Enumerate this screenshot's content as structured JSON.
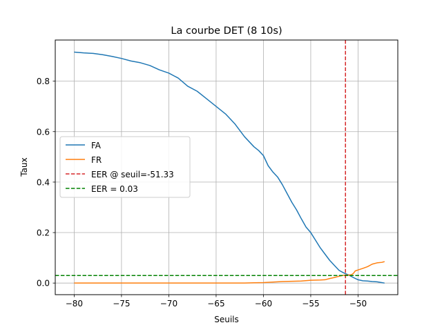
{
  "chart_data": {
    "type": "line",
    "title": "La courbe DET (8 10s)",
    "xlabel": "Seuils",
    "ylabel": "Taux",
    "xlim": [
      -82.0,
      -45.8
    ],
    "ylim": [
      -0.046,
      0.963
    ],
    "xticks": [
      -80,
      -75,
      -70,
      -65,
      -60,
      -55,
      -50
    ],
    "yticks": [
      0.0,
      0.2,
      0.4,
      0.6,
      0.8
    ],
    "xtick_labels": [
      "−80",
      "−75",
      "−70",
      "−65",
      "−60",
      "−55",
      "−50"
    ],
    "ytick_labels": [
      "0.0",
      "0.2",
      "0.4",
      "0.6",
      "0.8"
    ],
    "grid": true,
    "legend_position": "center-left",
    "series": [
      {
        "name": "FA",
        "color": "#1f77b4",
        "style": "solid",
        "x": [
          -80,
          -79,
          -78,
          -77,
          -76,
          -75,
          -74,
          -73,
          -72,
          -71,
          -70,
          -69,
          -68,
          -67,
          -66,
          -65,
          -64,
          -63,
          -62,
          -61,
          -60.5,
          -60,
          -59.5,
          -59,
          -58.5,
          -58,
          -57.5,
          -57,
          -56.5,
          -56,
          -55.5,
          -55,
          -54.5,
          -54,
          -53.5,
          -53,
          -52.5,
          -52,
          -51.5,
          -51,
          -50.5,
          -50,
          -49.5,
          -49,
          -48.5,
          -48,
          -47.5,
          -47.2
        ],
        "values": [
          0.915,
          0.912,
          0.91,
          0.905,
          0.898,
          0.89,
          0.88,
          0.873,
          0.862,
          0.845,
          0.832,
          0.812,
          0.78,
          0.76,
          0.73,
          0.7,
          0.67,
          0.63,
          0.58,
          0.54,
          0.525,
          0.505,
          0.465,
          0.44,
          0.42,
          0.39,
          0.355,
          0.32,
          0.29,
          0.255,
          0.222,
          0.2,
          0.17,
          0.14,
          0.115,
          0.09,
          0.07,
          0.05,
          0.04,
          0.032,
          0.022,
          0.013,
          0.009,
          0.008,
          0.006,
          0.005,
          0.002,
          0.0
        ]
      },
      {
        "name": "FR",
        "color": "#ff7f0e",
        "style": "solid",
        "x": [
          -80,
          -75,
          -70,
          -65,
          -62,
          -61,
          -60,
          -59,
          -58,
          -57,
          -56,
          -55,
          -54,
          -53.5,
          -53,
          -52.5,
          -52,
          -51.5,
          -51,
          -50.7,
          -50.5,
          -50.3,
          -50,
          -49.5,
          -49,
          -48.5,
          -48,
          -47.5,
          -47.2
        ],
        "values": [
          0.0,
          0.0,
          0.0,
          0.0,
          0.0,
          0.001,
          0.002,
          0.004,
          0.006,
          0.007,
          0.008,
          0.011,
          0.012,
          0.013,
          0.018,
          0.022,
          0.027,
          0.031,
          0.032,
          0.033,
          0.038,
          0.048,
          0.052,
          0.058,
          0.065,
          0.075,
          0.08,
          0.082,
          0.085
        ]
      }
    ],
    "reference_lines": [
      {
        "name": "EER @ seuil=-51.33",
        "orientation": "vertical",
        "value": -51.33,
        "color": "#d62728",
        "style": "dashed"
      },
      {
        "name": "EER = 0.03",
        "orientation": "horizontal",
        "value": 0.03,
        "color": "#008000",
        "style": "dashed"
      }
    ]
  }
}
